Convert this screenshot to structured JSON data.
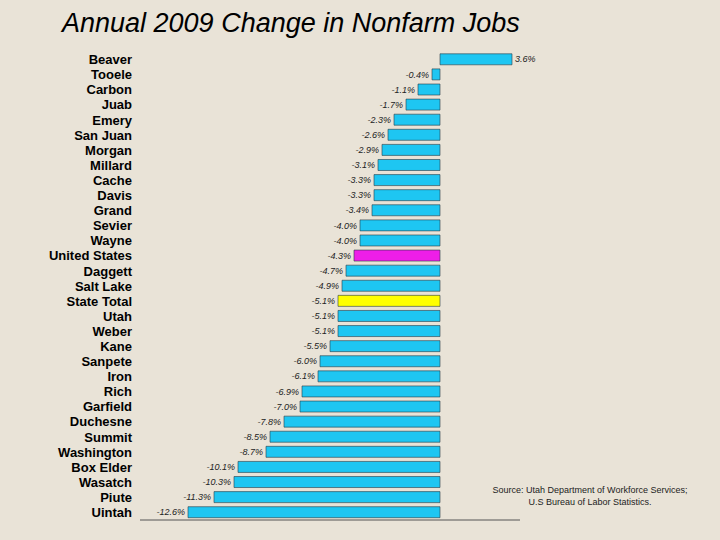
{
  "chart_data": {
    "type": "bar",
    "title": "Annual 2009 Change in Nonfarm Jobs",
    "orientation": "horizontal",
    "categories": [
      "Beaver",
      "Tooele",
      "Carbon",
      "Juab",
      "Emery",
      "San Juan",
      "Morgan",
      "Millard",
      "Cache",
      "Davis",
      "Grand",
      "Sevier",
      "Wayne",
      "United States",
      "Daggett",
      "Salt Lake",
      "State Total",
      "Utah",
      "Weber",
      "Kane",
      "Sanpete",
      "Iron",
      "Rich",
      "Garfield",
      "Duchesne",
      "Summit",
      "Washington",
      "Box Elder",
      "Wasatch",
      "Piute",
      "Uintah"
    ],
    "values": [
      3.6,
      -0.4,
      -1.1,
      -1.7,
      -2.3,
      -2.6,
      -2.9,
      -3.1,
      -3.3,
      -3.3,
      -3.4,
      -4.0,
      -4.0,
      -4.3,
      -4.7,
      -4.9,
      -5.1,
      -5.1,
      -5.1,
      -5.5,
      -6.0,
      -6.1,
      -6.9,
      -7.0,
      -7.8,
      -8.5,
      -8.7,
      -10.1,
      -10.3,
      -11.3,
      -12.6
    ],
    "value_labels": [
      "3.6%",
      "-0.4%",
      "-1.1%",
      "-1.7%",
      "-2.3%",
      "-2.6%",
      "-2.9%",
      "-3.1%",
      "-3.3%",
      "-3.3%",
      "-3.4%",
      "-4.0%",
      "-4.0%",
      "-4.3%",
      "-4.7%",
      "-4.9%",
      "-5.1%",
      "-5.1%",
      "-5.1%",
      "-5.5%",
      "-6.0%",
      "-6.1%",
      "-6.9%",
      "-7.0%",
      "-7.8%",
      "-8.5%",
      "-8.7%",
      "-10.1%",
      "-10.3%",
      "-11.3%",
      "-12.6%"
    ],
    "colors": [
      "#1ec6f2",
      "#1ec6f2",
      "#1ec6f2",
      "#1ec6f2",
      "#1ec6f2",
      "#1ec6f2",
      "#1ec6f2",
      "#1ec6f2",
      "#1ec6f2",
      "#1ec6f2",
      "#1ec6f2",
      "#1ec6f2",
      "#1ec6f2",
      "#ee1ee8",
      "#1ec6f2",
      "#1ec6f2",
      "#ffff00",
      "#1ec6f2",
      "#1ec6f2",
      "#1ec6f2",
      "#1ec6f2",
      "#1ec6f2",
      "#1ec6f2",
      "#1ec6f2",
      "#1ec6f2",
      "#1ec6f2",
      "#1ec6f2",
      "#1ec6f2",
      "#1ec6f2",
      "#1ec6f2",
      "#1ec6f2"
    ],
    "xlim": [
      -15,
      4
    ],
    "data_labels": true,
    "tick_labels": "y",
    "grid": false,
    "annotations": [
      "Source: Utah Department of Workforce Services;",
      "U.S Bureau of Labor Statistics."
    ]
  }
}
